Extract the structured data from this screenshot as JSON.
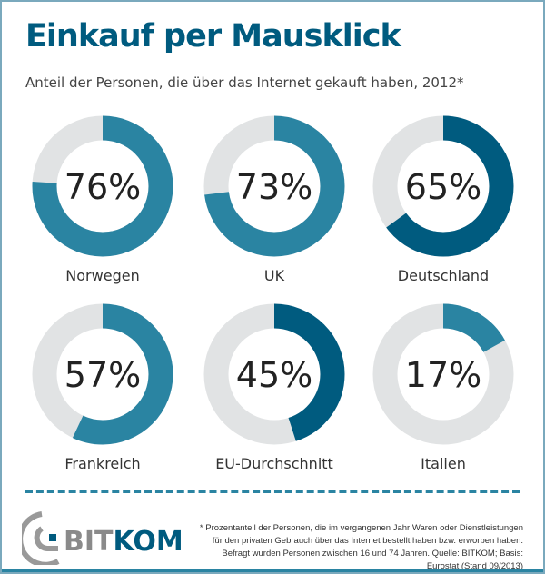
{
  "header": {
    "title": "Einkauf per Mausklick",
    "subtitle": "Anteil der Personen, die über das Internet gekauft haben, 2012*"
  },
  "chart_data": {
    "type": "pie",
    "subtype": "donut",
    "unit": "%",
    "categories": [
      "Norwegen",
      "UK",
      "Deutschland",
      "Frankreich",
      "EU-Durchschnitt",
      "Italien"
    ],
    "values": [
      76,
      73,
      65,
      57,
      45,
      17
    ],
    "labels": [
      "76%",
      "73%",
      "65%",
      "57%",
      "45%",
      "17%"
    ],
    "highlighted": [
      "Deutschland",
      "EU-Durchschnitt"
    ],
    "colors": {
      "default": "#2a84a2",
      "highlight": "#005b7f",
      "remainder": "#e1e3e4"
    }
  },
  "footer": {
    "logo_text": "BITKOM",
    "note": "* Prozentanteil der Personen, die im vergangenen Jahr Waren oder Dienstleistungen für den privaten Gebrauch über das Internet bestellt haben bzw. erworben haben. Befragt wurden Personen zwischen 16 und 74 Jahren. Quelle: BITKOM; Basis: Eurostat (Stand 09/2013)"
  }
}
